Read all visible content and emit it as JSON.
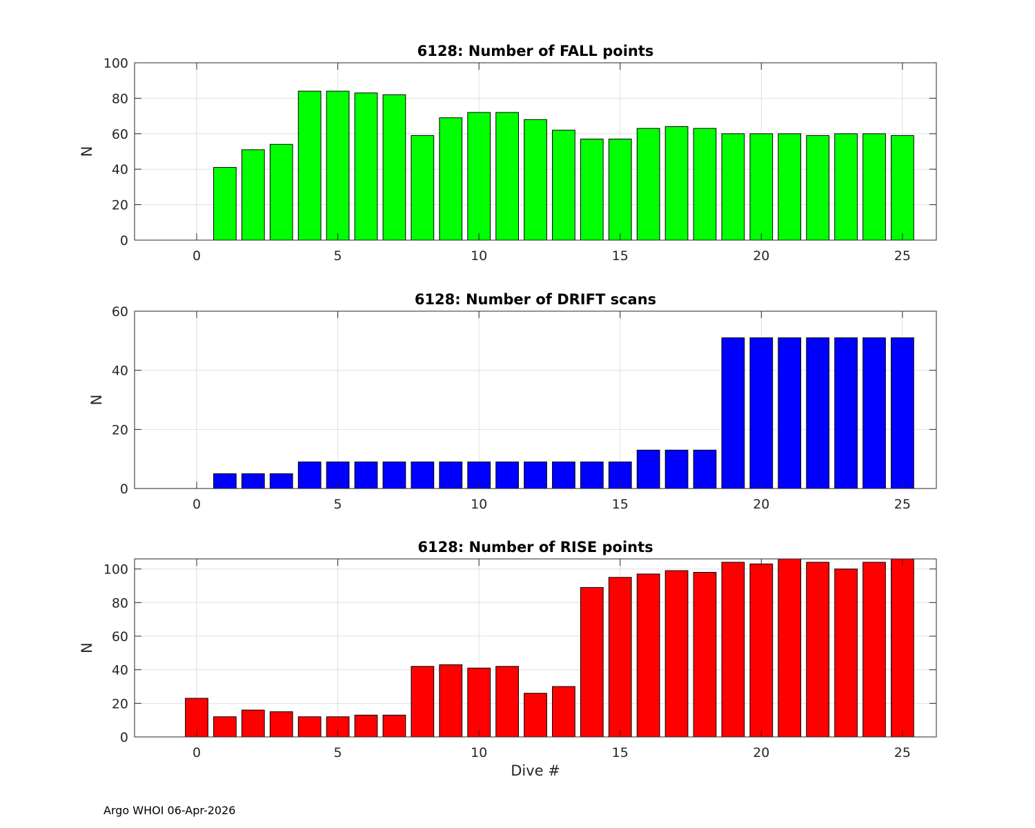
{
  "footer_text": "Argo WHOI 06-Apr-2026",
  "chart_data": [
    {
      "type": "bar",
      "title": "6128: Number of FALL points",
      "xlabel": "",
      "ylabel": "N",
      "color": "#00ff00",
      "xlim": [
        -2.2,
        26.2
      ],
      "ylim": [
        0,
        100
      ],
      "xticks": [
        0,
        5,
        10,
        15,
        20,
        25
      ],
      "yticks": [
        0,
        20,
        40,
        60,
        80,
        100
      ],
      "x": [
        -1,
        0,
        1,
        2,
        3,
        4,
        5,
        6,
        7,
        8,
        9,
        10,
        11,
        12,
        13,
        14,
        15,
        16,
        17,
        18,
        19,
        20,
        21,
        22,
        23,
        24,
        25
      ],
      "values": [
        0,
        0,
        41,
        51,
        54,
        84,
        84,
        83,
        82,
        59,
        69,
        72,
        72,
        68,
        62,
        57,
        57,
        63,
        64,
        63,
        60,
        60,
        60,
        59,
        60,
        60,
        59
      ]
    },
    {
      "type": "bar",
      "title": "6128: Number of DRIFT scans",
      "xlabel": "",
      "ylabel": "N",
      "color": "#0000ff",
      "xlim": [
        -2.2,
        26.2
      ],
      "ylim": [
        0,
        60
      ],
      "xticks": [
        0,
        5,
        10,
        15,
        20,
        25
      ],
      "yticks": [
        0,
        20,
        40,
        60
      ],
      "x": [
        -1,
        0,
        1,
        2,
        3,
        4,
        5,
        6,
        7,
        8,
        9,
        10,
        11,
        12,
        13,
        14,
        15,
        16,
        17,
        18,
        19,
        20,
        21,
        22,
        23,
        24,
        25
      ],
      "values": [
        0,
        0,
        5,
        5,
        5,
        9,
        9,
        9,
        9,
        9,
        9,
        9,
        9,
        9,
        9,
        9,
        9,
        13,
        13,
        13,
        51,
        51,
        51,
        51,
        51,
        51,
        51
      ]
    },
    {
      "type": "bar",
      "title": "6128: Number of RISE points",
      "xlabel": "Dive #",
      "ylabel": "N",
      "color": "#ff0000",
      "xlim": [
        -2.2,
        26.2
      ],
      "ylim": [
        0,
        106
      ],
      "xticks": [
        0,
        5,
        10,
        15,
        20,
        25
      ],
      "yticks": [
        0,
        20,
        40,
        60,
        80,
        100
      ],
      "x": [
        -1,
        0,
        1,
        2,
        3,
        4,
        5,
        6,
        7,
        8,
        9,
        10,
        11,
        12,
        13,
        14,
        15,
        16,
        17,
        18,
        19,
        20,
        21,
        22,
        23,
        24,
        25
      ],
      "values": [
        0,
        23,
        12,
        16,
        15,
        12,
        12,
        13,
        13,
        42,
        43,
        41,
        42,
        26,
        30,
        89,
        95,
        97,
        99,
        98,
        104,
        103,
        106,
        104,
        100,
        104,
        106
      ]
    }
  ]
}
